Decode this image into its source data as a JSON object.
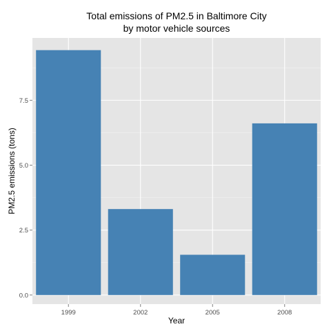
{
  "chart_data": {
    "type": "bar",
    "title_line1": "Total emissions of PM2.5 in Baltimore City",
    "title_line2": "by motor vehicle sources",
    "xlabel": "Year",
    "ylabel": "PM2.5 emissions (tons)",
    "categories": [
      "1999",
      "2002",
      "2005",
      "2008"
    ],
    "values": [
      9.43,
      3.31,
      1.55,
      6.61
    ],
    "ylim": [
      -0.35,
      9.9
    ],
    "yticks": [
      0.0,
      2.5,
      5.0,
      7.5
    ],
    "ytick_labels": [
      "0.0",
      "2.5",
      "5.0",
      "7.5"
    ],
    "bar_color": "#4682B4",
    "panel_color": "#E5E5E5",
    "grid": true,
    "legend": "none"
  }
}
